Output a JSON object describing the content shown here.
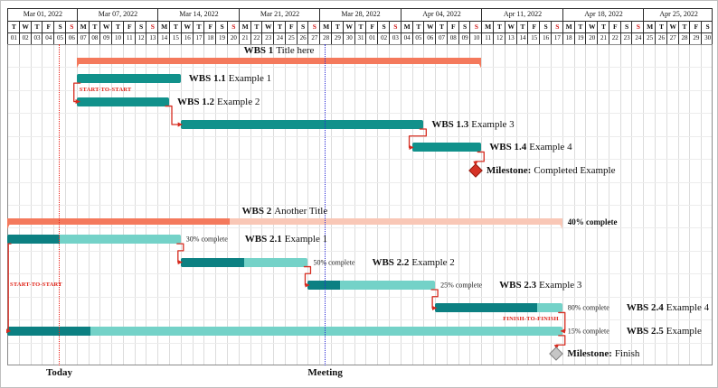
{
  "colors": {
    "task": "#11918b",
    "task_done": "#0c8082",
    "task_remaining": "#74d2c8",
    "group_done": "#f4795c",
    "group_remaining": "#f9c7b6",
    "link": "#d62b1f",
    "link_text": "#e01f14",
    "today": "#e8231a",
    "meeting": "#2b2bd4",
    "sunday": "#d01a1a",
    "milestone_done": "#d63226",
    "milestone_done_border": "#931d12",
    "milestone_pending": "#c6c6c6",
    "milestone_pending_border": "#7f7f7f"
  },
  "chart_data": {
    "type": "gantt",
    "timeline": {
      "start": "Mar 01, 2022",
      "end": "Apr 30, 2022",
      "unit": "day",
      "num_days": 61
    },
    "calendar": {
      "weeks": [
        {
          "label": "Mar 01, 2022",
          "days": 6
        },
        {
          "label": "Mar 07, 2022",
          "days": 7
        },
        {
          "label": "Mar 14, 2022",
          "days": 7
        },
        {
          "label": "Mar 21, 2022",
          "days": 7
        },
        {
          "label": "Mar 28, 2022",
          "days": 7
        },
        {
          "label": "Apr 04, 2022",
          "days": 7
        },
        {
          "label": "Apr 11, 2022",
          "days": 7
        },
        {
          "label": "Apr 18, 2022",
          "days": 7
        },
        {
          "label": "Apr 25, 2022",
          "days": 6
        }
      ],
      "day_letters": [
        "T",
        "W",
        "T",
        "F",
        "S",
        "S",
        "M",
        "T",
        "W",
        "T",
        "F",
        "S",
        "S",
        "M",
        "T",
        "W",
        "T",
        "F",
        "S",
        "S",
        "M",
        "T",
        "W",
        "T",
        "F",
        "S",
        "S",
        "M",
        "T",
        "W",
        "T",
        "F",
        "S",
        "S",
        "M",
        "T",
        "W",
        "T",
        "F",
        "S",
        "S",
        "M",
        "T",
        "W",
        "T",
        "F",
        "S",
        "S",
        "M",
        "T",
        "W",
        "T",
        "F",
        "S",
        "S",
        "M",
        "T",
        "W",
        "T",
        "F",
        "S"
      ],
      "day_numbers": [
        "01",
        "02",
        "03",
        "04",
        "05",
        "06",
        "07",
        "08",
        "09",
        "10",
        "11",
        "12",
        "13",
        "14",
        "15",
        "16",
        "17",
        "18",
        "19",
        "20",
        "21",
        "22",
        "23",
        "24",
        "25",
        "26",
        "27",
        "28",
        "29",
        "30",
        "31",
        "01",
        "02",
        "03",
        "04",
        "05",
        "06",
        "07",
        "08",
        "09",
        "10",
        "11",
        "12",
        "13",
        "14",
        "15",
        "16",
        "17",
        "18",
        "19",
        "20",
        "21",
        "22",
        "23",
        "24",
        "25",
        "26",
        "27",
        "28",
        "29",
        "30"
      ],
      "sunday_indices": [
        5,
        12,
        19,
        26,
        33,
        40,
        47,
        54
      ]
    },
    "tasks": [
      {
        "id": "g1",
        "row": 0,
        "kind": "group",
        "start": 6,
        "end": 40,
        "start_date": "Mar 07",
        "end_date": "Apr 10",
        "name_bold": "WBS 1",
        "name": "Title here"
      },
      {
        "id": "t11",
        "row": 1,
        "kind": "task",
        "start": 6,
        "end": 14,
        "start_date": "Mar 07",
        "end_date": "Mar 15",
        "name_bold": "WBS 1.1",
        "name": "Example 1"
      },
      {
        "id": "t12",
        "row": 2,
        "kind": "task",
        "start": 6,
        "end": 13,
        "start_date": "Mar 07",
        "end_date": "Mar 14",
        "name_bold": "WBS 1.2",
        "name": "Example 2"
      },
      {
        "id": "t13",
        "row": 3,
        "kind": "task",
        "start": 15,
        "end": 35,
        "start_date": "Mar 16",
        "end_date": "Apr 05",
        "name_bold": "WBS 1.3",
        "name": "Example 3"
      },
      {
        "id": "t14",
        "row": 4,
        "kind": "task",
        "start": 35,
        "end": 40,
        "start_date": "Apr 05",
        "end_date": "Apr 10",
        "name_bold": "WBS 1.4",
        "name": "Example 4"
      },
      {
        "id": "m1",
        "row": 5,
        "kind": "milestone",
        "day": 40,
        "date": "Apr 10",
        "name_bold": "Milestone:",
        "name": "Completed Example",
        "state": "done"
      },
      {
        "id": "g2",
        "row": 7,
        "kind": "group",
        "start": 0,
        "end": 47,
        "start_date": "Mar 01",
        "end_date": "Apr 17",
        "name_bold": "WBS 2",
        "name": "Another Title",
        "progress": 40,
        "progress_label": "40% complete"
      },
      {
        "id": "t21",
        "row": 8,
        "kind": "task",
        "start": 0,
        "end": 14,
        "start_date": "Mar 01",
        "end_date": "Mar 15",
        "name_bold": "WBS 2.1",
        "name": "Example 1",
        "progress": 30,
        "progress_label": "30% complete"
      },
      {
        "id": "t22",
        "row": 9,
        "kind": "task",
        "start": 15,
        "end": 25,
        "start_date": "Mar 16",
        "end_date": "Mar 26",
        "name_bold": "WBS 2.2",
        "name": "Example 2",
        "progress": 50,
        "progress_label": "50% complete"
      },
      {
        "id": "t23",
        "row": 10,
        "kind": "task",
        "start": 26,
        "end": 36,
        "start_date": "Mar 27",
        "end_date": "Apr 06",
        "name_bold": "WBS 2.3",
        "name": "Example 3",
        "progress": 25,
        "progress_label": "25% complete"
      },
      {
        "id": "t24",
        "row": 11,
        "kind": "task",
        "start": 37,
        "end": 47,
        "start_date": "Apr 07",
        "end_date": "Apr 17",
        "name_bold": "WBS 2.4",
        "name": "Example 4",
        "progress": 80,
        "progress_label": "80% complete"
      },
      {
        "id": "t25",
        "row": 12,
        "kind": "task",
        "start": 0,
        "end": 47,
        "start_date": "Mar 01",
        "end_date": "Apr 17",
        "name_bold": "WBS 2.5",
        "name": "Example",
        "progress": 15,
        "progress_label": "15% complete"
      },
      {
        "id": "m2",
        "row": 13,
        "kind": "milestone",
        "day": 47,
        "date": "Apr 17",
        "name_bold": "Milestone:",
        "name": "Finish",
        "state": "pending"
      }
    ],
    "links": [
      {
        "from": "t11",
        "to": "t12",
        "type": "start-to-start",
        "label": "START-TO-START"
      },
      {
        "from": "t12",
        "to": "t13",
        "type": "end-to-start"
      },
      {
        "from": "t13",
        "to": "t14",
        "type": "end-to-start"
      },
      {
        "from": "t14",
        "to": "m1",
        "type": "end-to-milestone"
      },
      {
        "from": "t21",
        "to": "t25",
        "type": "start-to-start",
        "label": "START-TO-START"
      },
      {
        "from": "t21",
        "to": "t22",
        "type": "end-to-start"
      },
      {
        "from": "t22",
        "to": "t23",
        "type": "end-to-start"
      },
      {
        "from": "t23",
        "to": "t24",
        "type": "end-to-start"
      },
      {
        "from": "t24",
        "to": "t25",
        "type": "finish-to-finish",
        "label": "FINISH-TO-FINISH"
      },
      {
        "from": "t25",
        "to": "m2",
        "type": "end-to-milestone"
      }
    ],
    "markers": [
      {
        "id": "today",
        "label": "Today",
        "day": 4,
        "date": "Mar 05",
        "style": "dotted"
      },
      {
        "id": "meeting",
        "label": "Meeting",
        "day": 27,
        "date": "Mar 28",
        "style": "dotted"
      }
    ]
  }
}
